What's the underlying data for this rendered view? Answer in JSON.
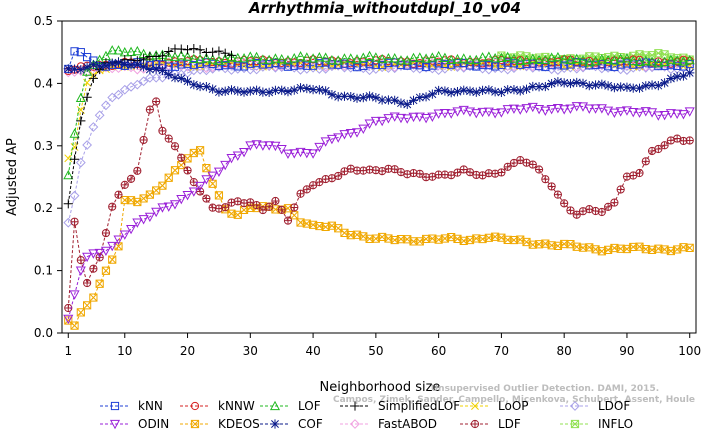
{
  "chart_data": {
    "type": "line",
    "title": "Arrhythmia_withoutdupl_10_v04",
    "xlabel": "Neighborhood size",
    "ylabel": "Adjusted AP",
    "xlim": [
      0,
      101
    ],
    "ylim": [
      0,
      0.5
    ],
    "x_ticks": [
      1,
      10,
      20,
      30,
      40,
      50,
      60,
      70,
      80,
      90,
      100
    ],
    "y_ticks": [
      0.0,
      0.1,
      0.2,
      0.3,
      0.4,
      0.5
    ],
    "watermark": "Campos, Zimek, Sander, Campello, Micenkova, Schubert, Assent, Houle",
    "watermark_top": "Unsupervised Outlier Detection. DAMI, 2015.",
    "legend_position": "bottom",
    "series": [
      {
        "name": "kNN",
        "color": "#1f3fd6",
        "marker": "square",
        "x_end": 100,
        "anchors": [
          [
            1,
            0.42
          ],
          [
            2,
            0.45
          ],
          [
            3,
            0.45
          ],
          [
            4,
            0.44
          ],
          [
            6,
            0.43
          ],
          [
            10,
            0.43
          ],
          [
            30,
            0.43
          ],
          [
            60,
            0.43
          ],
          [
            100,
            0.43
          ]
        ]
      },
      {
        "name": "kNNW",
        "color": "#d62020",
        "marker": "circle",
        "x_end": 100,
        "anchors": [
          [
            1,
            0.42
          ],
          [
            2,
            0.42
          ],
          [
            4,
            0.43
          ],
          [
            8,
            0.43
          ],
          [
            20,
            0.435
          ],
          [
            40,
            0.435
          ],
          [
            70,
            0.435
          ],
          [
            100,
            0.435
          ]
        ]
      },
      {
        "name": "LOF",
        "color": "#1fb81f",
        "marker": "triangle",
        "x_end": 100,
        "anchors": [
          [
            1,
            0.25
          ],
          [
            2,
            0.32
          ],
          [
            3,
            0.38
          ],
          [
            4,
            0.42
          ],
          [
            6,
            0.44
          ],
          [
            8,
            0.45
          ],
          [
            12,
            0.45
          ],
          [
            20,
            0.44
          ],
          [
            40,
            0.44
          ],
          [
            70,
            0.44
          ],
          [
            100,
            0.435
          ]
        ]
      },
      {
        "name": "SimplifiedLOF",
        "color": "#000000",
        "marker": "plus",
        "x_end": 27,
        "anchors": [
          [
            1,
            0.21
          ],
          [
            2,
            0.28
          ],
          [
            3,
            0.34
          ],
          [
            4,
            0.38
          ],
          [
            5,
            0.41
          ],
          [
            7,
            0.43
          ],
          [
            12,
            0.44
          ],
          [
            16,
            0.445
          ],
          [
            19,
            0.455
          ],
          [
            22,
            0.455
          ],
          [
            25,
            0.45
          ],
          [
            27,
            0.445
          ]
        ]
      },
      {
        "name": "LoOP",
        "color": "#f0d000",
        "marker": "x",
        "x_end": 100,
        "anchors": [
          [
            1,
            0.28
          ],
          [
            2,
            0.3
          ],
          [
            3,
            0.36
          ],
          [
            4,
            0.4
          ],
          [
            6,
            0.42
          ],
          [
            10,
            0.43
          ],
          [
            30,
            0.43
          ],
          [
            60,
            0.43
          ],
          [
            100,
            0.43
          ]
        ]
      },
      {
        "name": "LDOF",
        "color": "#a8a0e8",
        "marker": "diamond",
        "x_end": 100,
        "anchors": [
          [
            1,
            0.18
          ],
          [
            2,
            0.22
          ],
          [
            3,
            0.27
          ],
          [
            5,
            0.33
          ],
          [
            8,
            0.38
          ],
          [
            12,
            0.4
          ],
          [
            16,
            0.41
          ],
          [
            20,
            0.42
          ],
          [
            30,
            0.425
          ],
          [
            60,
            0.425
          ],
          [
            100,
            0.425
          ]
        ]
      },
      {
        "name": "ODIN",
        "color": "#9a20d8",
        "marker": "triangle-down",
        "x_end": 100,
        "anchors": [
          [
            1,
            0.02
          ],
          [
            2,
            0.06
          ],
          [
            3,
            0.1
          ],
          [
            4,
            0.12
          ],
          [
            6,
            0.13
          ],
          [
            8,
            0.14
          ],
          [
            10,
            0.16
          ],
          [
            13,
            0.18
          ],
          [
            16,
            0.2
          ],
          [
            20,
            0.22
          ],
          [
            24,
            0.25
          ],
          [
            27,
            0.28
          ],
          [
            30,
            0.3
          ],
          [
            33,
            0.3
          ],
          [
            36,
            0.29
          ],
          [
            40,
            0.29
          ],
          [
            43,
            0.31
          ],
          [
            46,
            0.32
          ],
          [
            48,
            0.33
          ],
          [
            50,
            0.34
          ],
          [
            55,
            0.345
          ],
          [
            60,
            0.35
          ],
          [
            65,
            0.355
          ],
          [
            70,
            0.355
          ],
          [
            75,
            0.36
          ],
          [
            80,
            0.36
          ],
          [
            85,
            0.36
          ],
          [
            90,
            0.355
          ],
          [
            95,
            0.35
          ],
          [
            100,
            0.355
          ]
        ]
      },
      {
        "name": "KDEOS",
        "color": "#f0a800",
        "marker": "square-x",
        "x_end": 100,
        "anchors": [
          [
            1,
            0.02
          ],
          [
            2,
            0.01
          ],
          [
            3,
            0.03
          ],
          [
            5,
            0.06
          ],
          [
            7,
            0.1
          ],
          [
            9,
            0.14
          ],
          [
            10,
            0.21
          ],
          [
            12,
            0.21
          ],
          [
            14,
            0.22
          ],
          [
            16,
            0.24
          ],
          [
            18,
            0.26
          ],
          [
            20,
            0.28
          ],
          [
            22,
            0.29
          ],
          [
            24,
            0.24
          ],
          [
            26,
            0.2
          ],
          [
            28,
            0.19
          ],
          [
            30,
            0.2
          ],
          [
            33,
            0.2
          ],
          [
            36,
            0.2
          ],
          [
            38,
            0.18
          ],
          [
            40,
            0.17
          ],
          [
            43,
            0.17
          ],
          [
            46,
            0.16
          ],
          [
            50,
            0.15
          ],
          [
            55,
            0.15
          ],
          [
            60,
            0.15
          ],
          [
            65,
            0.15
          ],
          [
            68,
            0.155
          ],
          [
            70,
            0.15
          ],
          [
            75,
            0.145
          ],
          [
            80,
            0.14
          ],
          [
            85,
            0.135
          ],
          [
            90,
            0.135
          ],
          [
            95,
            0.135
          ],
          [
            100,
            0.135
          ]
        ]
      },
      {
        "name": "COF",
        "color": "#0a1a8a",
        "marker": "star",
        "x_end": 100,
        "anchors": [
          [
            1,
            0.42
          ],
          [
            5,
            0.43
          ],
          [
            10,
            0.43
          ],
          [
            15,
            0.425
          ],
          [
            20,
            0.4
          ],
          [
            25,
            0.39
          ],
          [
            30,
            0.385
          ],
          [
            35,
            0.39
          ],
          [
            40,
            0.39
          ],
          [
            45,
            0.38
          ],
          [
            50,
            0.375
          ],
          [
            55,
            0.37
          ],
          [
            60,
            0.385
          ],
          [
            65,
            0.39
          ],
          [
            70,
            0.385
          ],
          [
            75,
            0.395
          ],
          [
            80,
            0.4
          ],
          [
            85,
            0.4
          ],
          [
            90,
            0.39
          ],
          [
            95,
            0.4
          ],
          [
            100,
            0.415
          ]
        ]
      },
      {
        "name": "FastABOD",
        "color": "#f0a0e0",
        "marker": "diamond",
        "x_end": 100,
        "anchors": [
          [
            1,
            0.42
          ],
          [
            4,
            0.42
          ],
          [
            10,
            0.425
          ],
          [
            30,
            0.43
          ],
          [
            60,
            0.43
          ],
          [
            100,
            0.43
          ]
        ]
      },
      {
        "name": "LDF",
        "color": "#a02030",
        "marker": "circle-plus",
        "x_end": 100,
        "anchors": [
          [
            1,
            0.04
          ],
          [
            2,
            0.18
          ],
          [
            3,
            0.12
          ],
          [
            4,
            0.08
          ],
          [
            6,
            0.12
          ],
          [
            8,
            0.2
          ],
          [
            10,
            0.24
          ],
          [
            12,
            0.26
          ],
          [
            14,
            0.36
          ],
          [
            15,
            0.37
          ],
          [
            16,
            0.32
          ],
          [
            18,
            0.3
          ],
          [
            20,
            0.26
          ],
          [
            22,
            0.23
          ],
          [
            24,
            0.2
          ],
          [
            26,
            0.2
          ],
          [
            28,
            0.21
          ],
          [
            30,
            0.21
          ],
          [
            32,
            0.2
          ],
          [
            34,
            0.21
          ],
          [
            36,
            0.18
          ],
          [
            38,
            0.22
          ],
          [
            40,
            0.24
          ],
          [
            43,
            0.25
          ],
          [
            46,
            0.26
          ],
          [
            49,
            0.26
          ],
          [
            52,
            0.265
          ],
          [
            55,
            0.255
          ],
          [
            58,
            0.25
          ],
          [
            61,
            0.255
          ],
          [
            64,
            0.26
          ],
          [
            67,
            0.25
          ],
          [
            70,
            0.26
          ],
          [
            73,
            0.28
          ],
          [
            76,
            0.26
          ],
          [
            79,
            0.22
          ],
          [
            82,
            0.19
          ],
          [
            84,
            0.2
          ],
          [
            86,
            0.19
          ],
          [
            88,
            0.21
          ],
          [
            90,
            0.25
          ],
          [
            92,
            0.26
          ],
          [
            94,
            0.29
          ],
          [
            96,
            0.3
          ],
          [
            98,
            0.31
          ],
          [
            100,
            0.31
          ]
        ]
      },
      {
        "name": "INFLO",
        "color": "#90e050",
        "marker": "asterisk",
        "x_end": 100,
        "anchors": [
          [
            70,
            0.445
          ],
          [
            75,
            0.44
          ],
          [
            80,
            0.44
          ],
          [
            85,
            0.44
          ],
          [
            90,
            0.445
          ],
          [
            95,
            0.445
          ],
          [
            100,
            0.44
          ]
        ]
      }
    ]
  }
}
